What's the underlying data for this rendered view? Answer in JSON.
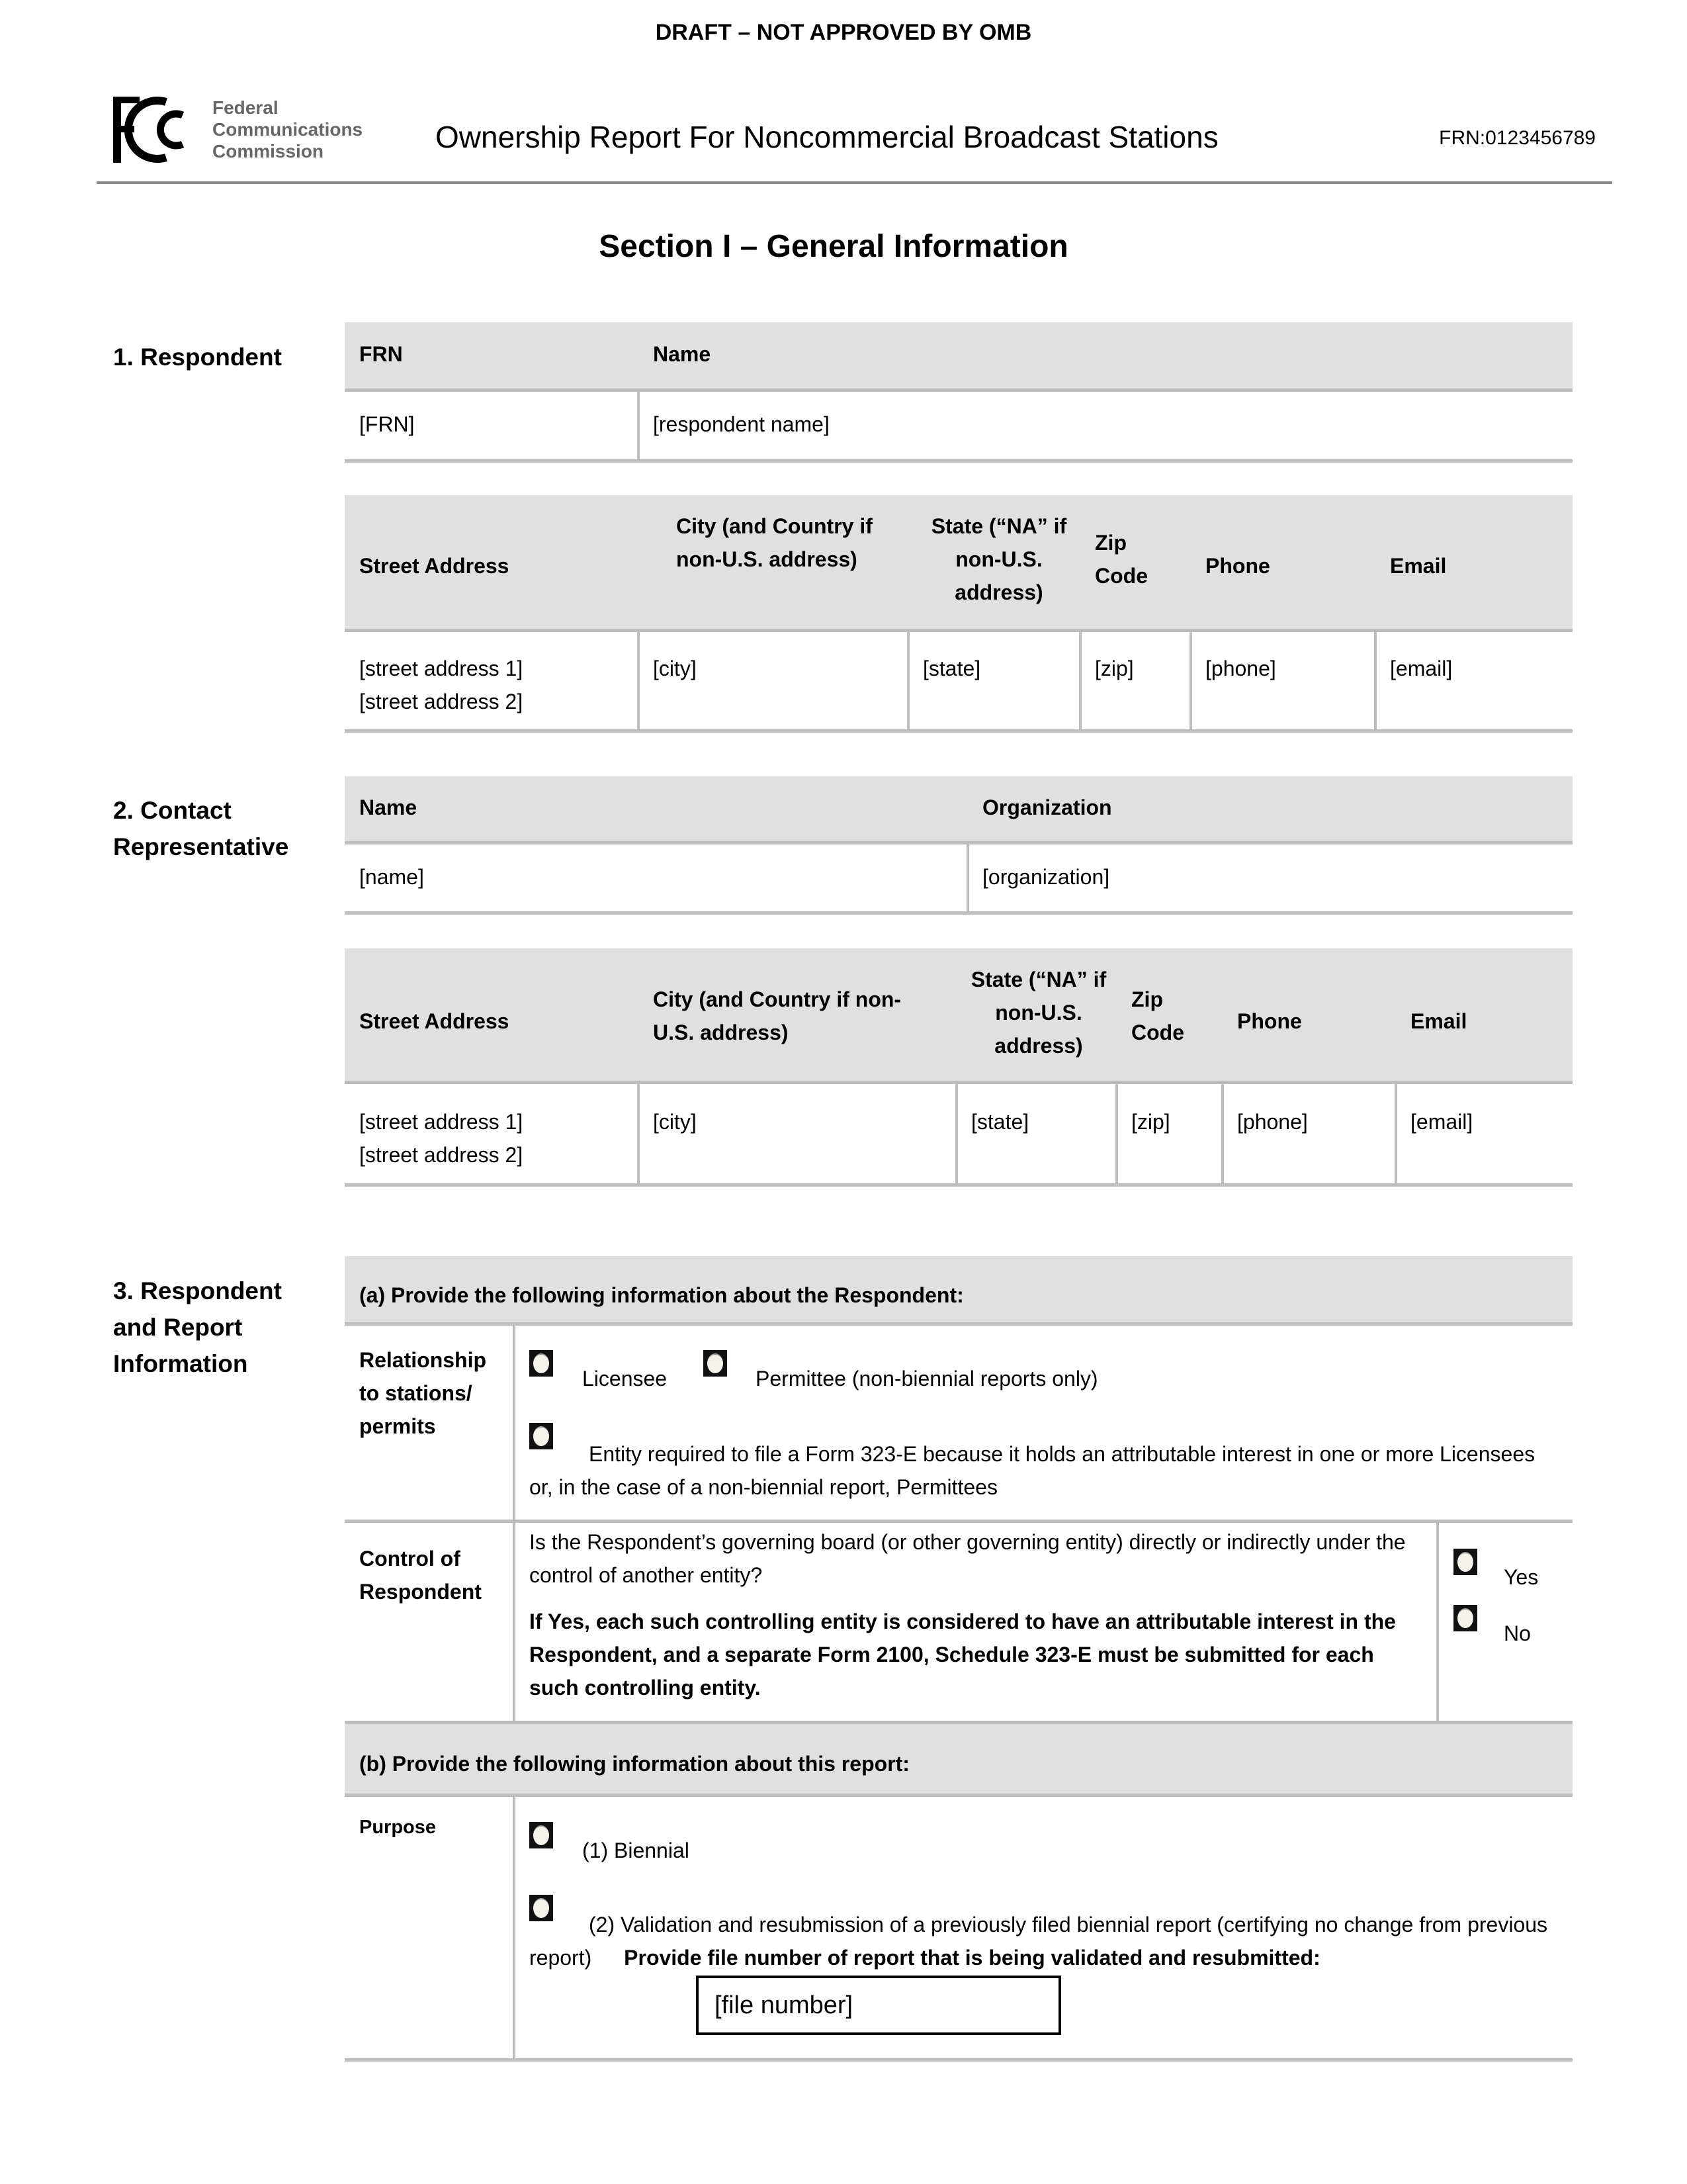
{
  "draft_banner": "DRAFT – NOT APPROVED BY OMB",
  "header": {
    "logo_text": [
      "Federal",
      "Communications",
      "Commission"
    ],
    "title": "Ownership Report For Noncommercial Broadcast Stations",
    "frn": "FRN:0123456789"
  },
  "section_title": "Section I – General Information",
  "respondent": {
    "label": "1.  Respondent",
    "frn_header": "FRN",
    "name_header": "Name",
    "frn_value": "[FRN]",
    "name_value": "[respondent name]",
    "address_headers": [
      "Street Address",
      "City (and Country if non-U.S. address)",
      "State (“NA” if non-U.S. address)",
      "Zip Code",
      "Phone",
      "Email"
    ],
    "address_values": [
      "[street address 1]\n[street address 2]",
      "[city]",
      "[state]",
      "[zip]",
      "[phone]",
      "[email]"
    ]
  },
  "contact": {
    "label": "2.  Contact Representative",
    "name_header": "Name",
    "org_header": "Organization",
    "name_value": "[name]",
    "org_value": "[organization]",
    "address_headers": [
      "Street Address",
      "City (and Country if non-U.S. address)",
      "State (“NA” if non-U.S. address)",
      "Zip Code",
      "Phone",
      "Email"
    ],
    "address_values": [
      "[street address 1]\n[street address 2]",
      "[city]",
      "[state]",
      "[zip]",
      "[phone]",
      "[email]"
    ]
  },
  "report_info": {
    "label": "3.  Respondent and Report Information",
    "part_a_header": "(a)  Provide the following information about the Respondent:",
    "relationship_label": "Relationship to stations/ permits",
    "relationship_options": [
      "Licensee",
      "Permittee (non-biennial reports only)",
      "Entity required to file a Form 323-E because it holds an attributable interest in one or more Licensees or, in the case of a non-biennial report, Permittees"
    ],
    "control_label": "Control of Respondent",
    "control_question": "Is the Respondent’s governing board (or other governing entity) directly or indirectly under the control of another entity?",
    "control_note": "If Yes, each such controlling entity is considered to have an attributable interest in the Respondent, and a separate Form 2100, Schedule 323-E must be submitted for each such controlling entity.",
    "control_options": [
      "Yes",
      "No"
    ],
    "part_b_header": "(b)  Provide the following information about this report:",
    "purpose_label": "Purpose",
    "purpose_options": [
      "(1) Biennial",
      "(2) Validation and resubmission of a previously filed biennial report (certifying no change from previous report)"
    ],
    "file_number_prompt": "Provide file number of report that is being validated and resubmitted:",
    "file_number_value": "[file number]"
  }
}
